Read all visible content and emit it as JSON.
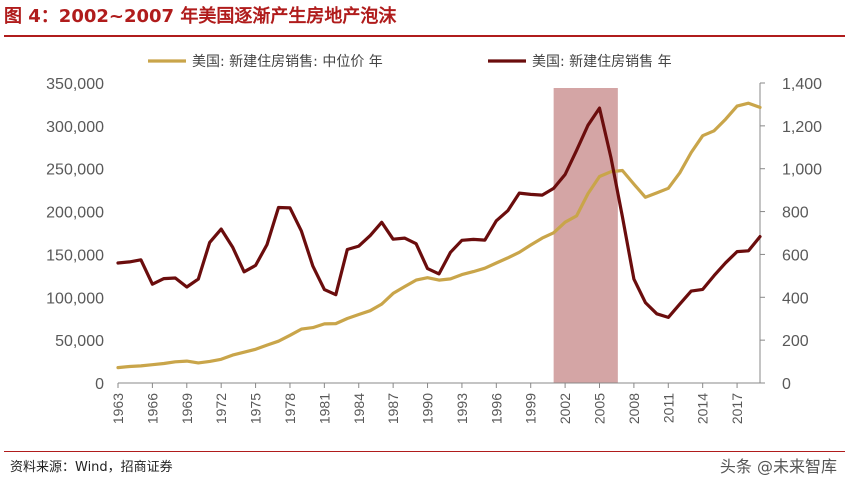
{
  "header": {
    "title": "图 4：2002~2007 年美国逐渐产生房地产泡沫"
  },
  "footer": {
    "source": "资料来源：Wind，招商证券",
    "watermark": "头条 @未来智库"
  },
  "chart_data": {
    "type": "line",
    "title": "图 4：2002~2007 年美国逐渐产生房地产泡沫",
    "xlabel": "",
    "x_tick_labels": [
      "1963",
      "1966",
      "1969",
      "1972",
      "1975",
      "1978",
      "1981",
      "1984",
      "1987",
      "1990",
      "1993",
      "1996",
      "1999",
      "2002",
      "2005",
      "2008",
      "2011",
      "2014",
      "2017"
    ],
    "xlim": [
      1963,
      2019
    ],
    "y_left": {
      "label": "",
      "lim": [
        0,
        350000
      ],
      "ticks": [
        0,
        50000,
        100000,
        150000,
        200000,
        250000,
        300000,
        350000
      ],
      "tick_labels": [
        "0",
        "50,000",
        "100,000",
        "150,000",
        "200,000",
        "250,000",
        "300,000",
        "350,000"
      ]
    },
    "y_right": {
      "label": "",
      "lim": [
        0,
        1400
      ],
      "ticks": [
        0,
        200,
        400,
        600,
        800,
        1000,
        1200,
        1400
      ],
      "tick_labels": [
        "0",
        "200",
        "400",
        "600",
        "800",
        "1,000",
        "1,200",
        "1,400"
      ]
    },
    "grid": false,
    "legend_position": "top",
    "highlight_band": {
      "x_start": 2001,
      "x_end": 2006.6,
      "color": "#d4a5a5"
    },
    "series": [
      {
        "name": "美国: 新建住房销售: 中位价  年",
        "axis": "left",
        "color": "#c9a54a",
        "x": [
          1963,
          1964,
          1965,
          1966,
          1967,
          1968,
          1969,
          1970,
          1971,
          1972,
          1973,
          1974,
          1975,
          1976,
          1977,
          1978,
          1979,
          1980,
          1981,
          1982,
          1983,
          1984,
          1985,
          1986,
          1987,
          1988,
          1989,
          1990,
          1991,
          1992,
          1993,
          1994,
          1995,
          1996,
          1997,
          1998,
          1999,
          2000,
          2001,
          2002,
          2003,
          2004,
          2005,
          2006,
          2007,
          2008,
          2009,
          2010,
          2011,
          2012,
          2013,
          2014,
          2015,
          2016,
          2017,
          2018,
          2019
        ],
        "values": [
          18000,
          19300,
          20000,
          21400,
          22700,
          24700,
          25600,
          23400,
          25200,
          27600,
          32500,
          35900,
          39300,
          44200,
          48800,
          55700,
          62900,
          64600,
          68900,
          69300,
          75300,
          79900,
          84300,
          92000,
          104500,
          112500,
          120000,
          122900,
          120000,
          121500,
          126500,
          130000,
          133900,
          140000,
          146000,
          152500,
          161000,
          169000,
          175200,
          187600,
          195000,
          221000,
          240900,
          246500,
          247900,
          232100,
          216700,
          221800,
          227200,
          245200,
          268900,
          288500,
          294200,
          307800,
          323100,
          326400,
          321500
        ]
      },
      {
        "name": "美国: 新建住房销售  年",
        "axis": "right",
        "color": "#6b0d0d",
        "x": [
          1963,
          1964,
          1965,
          1966,
          1967,
          1968,
          1969,
          1970,
          1971,
          1972,
          1973,
          1974,
          1975,
          1976,
          1977,
          1978,
          1979,
          1980,
          1981,
          1982,
          1983,
          1984,
          1985,
          1986,
          1987,
          1988,
          1989,
          1990,
          1991,
          1992,
          1993,
          1994,
          1995,
          1996,
          1997,
          1998,
          1999,
          2000,
          2001,
          2002,
          2003,
          2004,
          2005,
          2006,
          2007,
          2008,
          2009,
          2010,
          2011,
          2012,
          2013,
          2014,
          2015,
          2016,
          2017,
          2018,
          2019
        ],
        "values": [
          560,
          565,
          575,
          461,
          487,
          490,
          448,
          485,
          656,
          718,
          634,
          519,
          549,
          646,
          819,
          817,
          709,
          545,
          436,
          412,
          623,
          639,
          688,
          750,
          671,
          676,
          650,
          534,
          509,
          610,
          666,
          670,
          667,
          757,
          804,
          886,
          880,
          877,
          908,
          973,
          1086,
          1203,
          1283,
          1051,
          776,
          485,
          375,
          323,
          306,
          368,
          429,
          437,
          501,
          561,
          613,
          617,
          683
        ]
      }
    ]
  }
}
